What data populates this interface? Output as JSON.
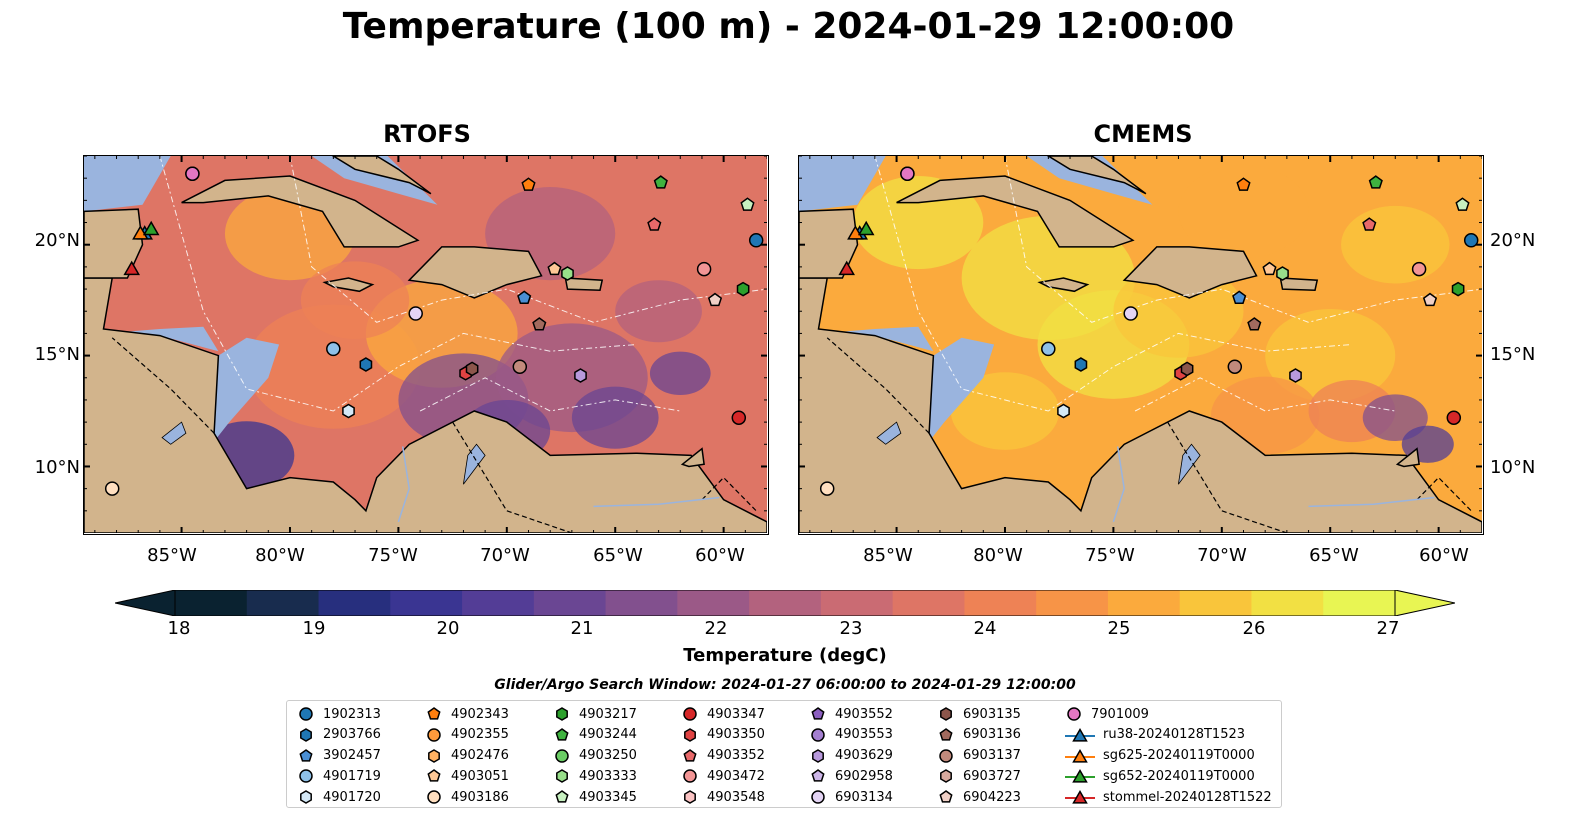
{
  "title": "Temperature (100 m) - 2024-01-29 12:00:00",
  "panels": {
    "left": {
      "title": "RTOFS"
    },
    "right": {
      "title": "CMEMS"
    }
  },
  "axes": {
    "lon_labels": [
      "85°W",
      "80°W",
      "75°W",
      "70°W",
      "65°W",
      "60°W"
    ],
    "lat_labels": [
      "20°N",
      "15°N",
      "10°N"
    ]
  },
  "colorbar": {
    "label": "Temperature (degC)",
    "ticks": [
      "18",
      "19",
      "20",
      "21",
      "22",
      "23",
      "24",
      "25",
      "26",
      "27"
    ],
    "range": [
      17.5,
      27.5
    ],
    "extend": "both",
    "colormap": [
      "#0a2230",
      "#182c4e",
      "#272f7e",
      "#3a3592",
      "#533d96",
      "#6a4693",
      "#82508e",
      "#9b5987",
      "#b3627e",
      "#ca6b73",
      "#de7565",
      "#ee8255",
      "#f79447",
      "#fbaa3d",
      "#f9c53b",
      "#f2e043",
      "#e8f553"
    ]
  },
  "map": {
    "lon_range": [
      -89.5,
      -58
    ],
    "lat_range": [
      7,
      24
    ],
    "colors": {
      "land": "#d2b48c",
      "shallow": "#9ab4de",
      "rivers": "#9ab4de"
    }
  },
  "search_window": "Glider/Argo Search Window: 2024-01-27 06:00:00 to 2024-01-29 12:00:00",
  "legend": {
    "columns": [
      [
        {
          "label": "1902313",
          "marker": "circle",
          "color": "#1f77b4"
        },
        {
          "label": "2903766",
          "marker": "hexagon",
          "color": "#1f77b4"
        },
        {
          "label": "3902457",
          "marker": "pentagon",
          "color": "#4a8fd4"
        },
        {
          "label": "4901719",
          "marker": "circle",
          "color": "#8fc1e8"
        },
        {
          "label": "4901720",
          "marker": "hexagon",
          "color": "#d4e8f6"
        }
      ],
      [
        {
          "label": "4902343",
          "marker": "pentagon",
          "color": "#ff7f0e"
        },
        {
          "label": "4902355",
          "marker": "circle",
          "color": "#ff9a3c"
        },
        {
          "label": "4902476",
          "marker": "hexagon",
          "color": "#ffb263"
        },
        {
          "label": "4903051",
          "marker": "pentagon",
          "color": "#ffc896"
        },
        {
          "label": "4903186",
          "marker": "circle",
          "color": "#ffdfc0"
        }
      ],
      [
        {
          "label": "4903217",
          "marker": "hexagon",
          "color": "#2ca02c"
        },
        {
          "label": "4903244",
          "marker": "pentagon",
          "color": "#3fb33f"
        },
        {
          "label": "4903250",
          "marker": "circle",
          "color": "#6acc64"
        },
        {
          "label": "4903333",
          "marker": "hexagon",
          "color": "#98df8a"
        },
        {
          "label": "4903345",
          "marker": "pentagon",
          "color": "#c7f0c0"
        }
      ],
      [
        {
          "label": "4903347",
          "marker": "circle",
          "color": "#d62728"
        },
        {
          "label": "4903350",
          "marker": "hexagon",
          "color": "#e04343"
        },
        {
          "label": "4903352",
          "marker": "pentagon",
          "color": "#e8696a"
        },
        {
          "label": "4903472",
          "marker": "circle",
          "color": "#f29595"
        },
        {
          "label": "4903548",
          "marker": "hexagon",
          "color": "#fbc3c3"
        }
      ],
      [
        {
          "label": "4903552",
          "marker": "pentagon",
          "color": "#8c5fc0"
        },
        {
          "label": "4903553",
          "marker": "circle",
          "color": "#a47fd0"
        },
        {
          "label": "4903629",
          "marker": "hexagon",
          "color": "#b899dc"
        },
        {
          "label": "6902958",
          "marker": "pentagon",
          "color": "#cdb6e8"
        },
        {
          "label": "6903134",
          "marker": "circle",
          "color": "#e4d4f4"
        }
      ],
      [
        {
          "label": "6903135",
          "marker": "hexagon",
          "color": "#8c564b"
        },
        {
          "label": "6903136",
          "marker": "pentagon",
          "color": "#a26a5e"
        },
        {
          "label": "6903137",
          "marker": "circle",
          "color": "#c28a7c"
        },
        {
          "label": "6903727",
          "marker": "hexagon",
          "color": "#d8aa9e"
        },
        {
          "label": "6904223",
          "marker": "pentagon",
          "color": "#f0d0c6"
        }
      ],
      [
        {
          "label": "7901009",
          "marker": "circle",
          "color": "#e377c2"
        },
        {
          "label": "ru38-20240128T1523",
          "marker": "triangle",
          "color": "#1f77b4"
        },
        {
          "label": "sg625-20240119T0000",
          "marker": "triangle",
          "color": "#ff7f0e"
        },
        {
          "label": "sg652-20240119T0000",
          "marker": "triangle",
          "color": "#2ca02c"
        },
        {
          "label": "stommel-20240128T1522",
          "marker": "triangle",
          "color": "#d62728"
        }
      ]
    ]
  },
  "points": [
    {
      "id": "1902313",
      "lon": -58.5,
      "lat": 20.2
    },
    {
      "id": "3902457",
      "lon": -69.2,
      "lat": 17.6
    },
    {
      "id": "4901719",
      "lon": -78.0,
      "lat": 15.3
    },
    {
      "id": "2903766",
      "lon": -76.5,
      "lat": 14.6
    },
    {
      "id": "4901720",
      "lon": -77.3,
      "lat": 12.5
    },
    {
      "id": "4902343",
      "lon": -69.0,
      "lat": 22.7
    },
    {
      "id": "4903051",
      "lon": -67.8,
      "lat": 18.9
    },
    {
      "id": "4903186",
      "lon": -88.2,
      "lat": 9.0
    },
    {
      "id": "6903137",
      "lon": -69.4,
      "lat": 14.5
    },
    {
      "id": "4903244",
      "lon": -62.9,
      "lat": 22.8
    },
    {
      "id": "4903217",
      "lon": -59.1,
      "lat": 18.0
    },
    {
      "id": "4903333",
      "lon": -67.2,
      "lat": 18.7
    },
    {
      "id": "4903345",
      "lon": -58.9,
      "lat": 21.8
    },
    {
      "id": "4903347",
      "lon": -59.3,
      "lat": 12.2
    },
    {
      "id": "4903350",
      "lon": -71.9,
      "lat": 14.2
    },
    {
      "id": "6903135",
      "lon": -71.6,
      "lat": 14.4
    },
    {
      "id": "4903352",
      "lon": -63.2,
      "lat": 20.9
    },
    {
      "id": "4903472",
      "lon": -60.9,
      "lat": 18.9
    },
    {
      "id": "6904223",
      "lon": -60.4,
      "lat": 17.5
    },
    {
      "id": "6903136",
      "lon": -68.5,
      "lat": 16.4
    },
    {
      "id": "4903629",
      "lon": -66.6,
      "lat": 14.1
    },
    {
      "id": "4903553",
      "lon": -84.5,
      "lat": 23.2
    },
    {
      "id": "6903134",
      "lon": -74.2,
      "lat": 16.9
    },
    {
      "id": "7901009",
      "lon": -84.5,
      "lat": 23.2
    },
    {
      "id": "ru38-20240128T1523",
      "lon": -86.7,
      "lat": 20.5
    },
    {
      "id": "sg625-20240119T0000",
      "lon": -86.9,
      "lat": 20.5
    },
    {
      "id": "sg652-20240119T0000",
      "lon": -86.4,
      "lat": 20.7
    },
    {
      "id": "stommel-20240128T1522",
      "lon": -87.3,
      "lat": 18.9
    }
  ]
}
